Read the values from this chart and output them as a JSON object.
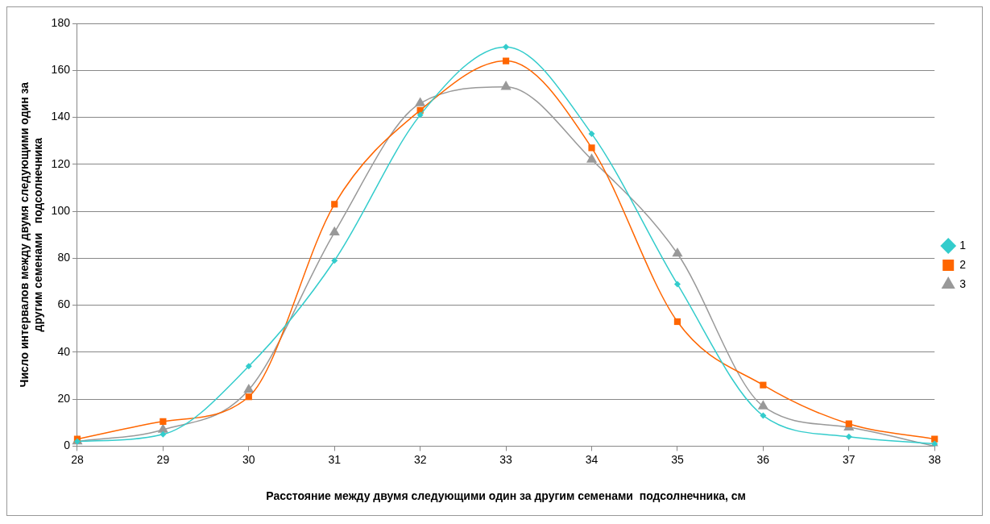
{
  "chart_data": {
    "type": "line",
    "xlabel": "Расстояние между двумя следующими один за другим семенами  подсолнечника, см",
    "ylabel": "Число интервалов между двумя следующими один за другим семенами   подсолнечника",
    "categories": [
      "28",
      "29",
      "30",
      "31",
      "32",
      "33",
      "34",
      "35",
      "36",
      "37",
      "38"
    ],
    "series": [
      {
        "name": "1",
        "color": "#33cccc",
        "marker": "diamond",
        "values": [
          2,
          5,
          34,
          79,
          141,
          170,
          133,
          69,
          13,
          4,
          1
        ]
      },
      {
        "name": "2",
        "color": "#ff6600",
        "marker": "square",
        "values": [
          3,
          10.5,
          21,
          103,
          143,
          164,
          127,
          53,
          26,
          9.5,
          3
        ]
      },
      {
        "name": "3",
        "color": "#999999",
        "marker": "triangle",
        "values": [
          2,
          7,
          24,
          91,
          146,
          153,
          122,
          82,
          17,
          8,
          0
        ]
      }
    ],
    "ylim": [
      0,
      180
    ],
    "yticks": [
      0,
      20,
      40,
      60,
      80,
      100,
      120,
      140,
      160,
      180
    ],
    "grid": "y",
    "legend": "right",
    "line_style": "solid"
  }
}
